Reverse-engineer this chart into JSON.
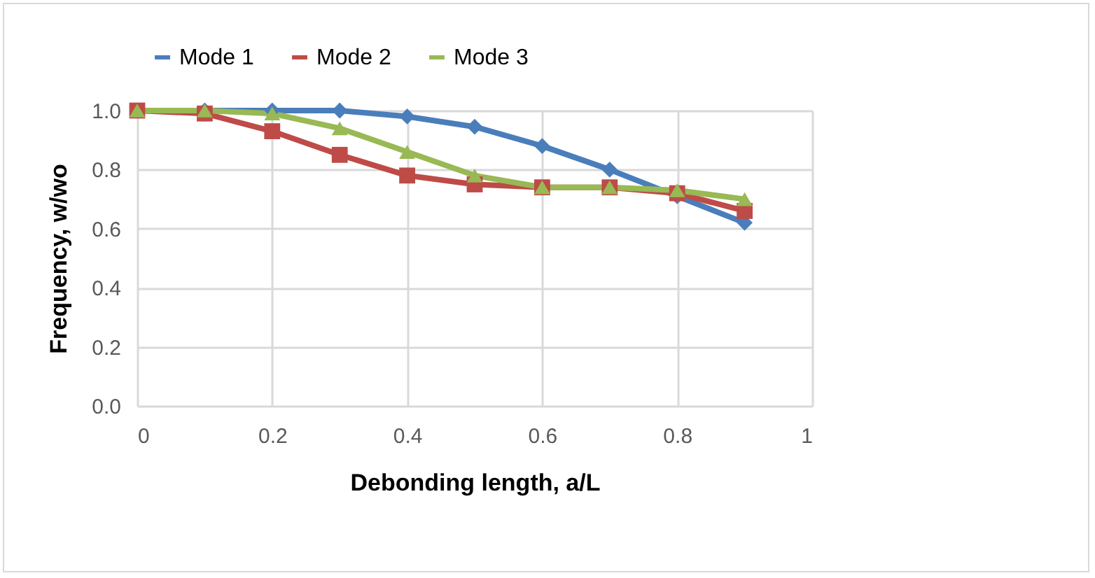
{
  "chart_data": {
    "type": "line",
    "xlabel": "Debonding length, a/L",
    "ylabel": "Frequency, w/wo",
    "x": [
      0,
      0.1,
      0.2,
      0.3,
      0.4,
      0.5,
      0.6,
      0.7,
      0.8,
      0.9
    ],
    "series": [
      {
        "name": "Mode 1",
        "color": "#4a7ebb",
        "marker": "diamond",
        "values": [
          1.0,
          1.0,
          1.0,
          1.0,
          0.98,
          0.945,
          0.88,
          0.8,
          0.71,
          0.62
        ]
      },
      {
        "name": "Mode 2",
        "color": "#be4b48",
        "marker": "square",
        "values": [
          1.0,
          0.99,
          0.93,
          0.85,
          0.78,
          0.75,
          0.74,
          0.74,
          0.72,
          0.66
        ]
      },
      {
        "name": "Mode 3",
        "color": "#98b954",
        "marker": "triangle",
        "values": [
          1.0,
          1.0,
          0.99,
          0.94,
          0.86,
          0.78,
          0.74,
          0.74,
          0.73,
          0.7
        ]
      }
    ],
    "xlim": [
      0,
      1
    ],
    "xticks": [
      0,
      0.2,
      0.4,
      0.6,
      0.8,
      1
    ],
    "ylim": [
      0,
      1
    ],
    "yticks": [
      {
        "value": 0,
        "label": "0.0"
      },
      {
        "value": 0.2,
        "label": "0.2"
      },
      {
        "value": 0.4,
        "label": "0.4"
      },
      {
        "value": 0.6,
        "label": "0.6"
      },
      {
        "value": 0.8,
        "label": "0.8"
      },
      {
        "value": 1,
        "label": "1.0"
      }
    ],
    "grid": true,
    "legend": "top",
    "line_style": "solid"
  }
}
